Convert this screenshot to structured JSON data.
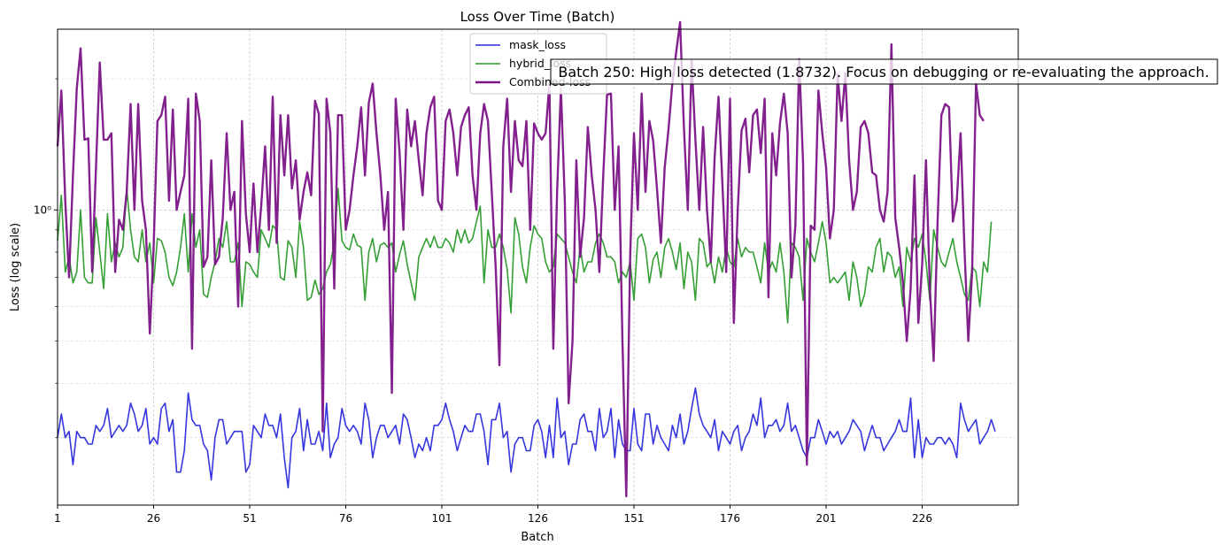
{
  "chart_data": {
    "type": "line",
    "title": "Loss Over Time (Batch)",
    "xlabel": "Batch",
    "ylabel": "Loss (log scale)",
    "yscale": "log",
    "xlim": [
      1,
      251
    ],
    "ylim": [
      0.21,
      2.6
    ],
    "x_ticks": [
      1,
      26,
      51,
      76,
      101,
      126,
      151,
      176,
      201,
      226
    ],
    "y_tick_labels": [
      {
        "value": 1,
        "label": "10⁰"
      }
    ],
    "grid": true,
    "legend": "top-center",
    "annotation": {
      "text": "Batch 250: High loss detected (1.8732). Focus on debugging or re-evaluating the approach.",
      "x": 250,
      "y": 1.8732
    },
    "series": [
      {
        "name": "mask_loss",
        "color": "#2b2bdd",
        "values": [
          0.3,
          0.34,
          0.3,
          0.31,
          0.26,
          0.31,
          0.3,
          0.3,
          0.29,
          0.29,
          0.32,
          0.31,
          0.32,
          0.35,
          0.3,
          0.31,
          0.32,
          0.31,
          0.32,
          0.36,
          0.34,
          0.31,
          0.32,
          0.35,
          0.29,
          0.3,
          0.29,
          0.35,
          0.36,
          0.31,
          0.33,
          0.25,
          0.25,
          0.28,
          0.38,
          0.33,
          0.32,
          0.32,
          0.29,
          0.28,
          0.24,
          0.3,
          0.33,
          0.33,
          0.29,
          0.3,
          0.31,
          0.31,
          0.31,
          0.25,
          0.26,
          0.32,
          0.31,
          0.3,
          0.34,
          0.32,
          0.32,
          0.3,
          0.34,
          0.27,
          0.23,
          0.3,
          0.31,
          0.35,
          0.28,
          0.33,
          0.29,
          0.29,
          0.31,
          0.28,
          0.36,
          0.27,
          0.29,
          0.3,
          0.35,
          0.32,
          0.31,
          0.32,
          0.31,
          0.29,
          0.36,
          0.33,
          0.27,
          0.3,
          0.32,
          0.32,
          0.3,
          0.31,
          0.32,
          0.29,
          0.34,
          0.33,
          0.3,
          0.27,
          0.29,
          0.28,
          0.3,
          0.28,
          0.32,
          0.32,
          0.33,
          0.36,
          0.33,
          0.31,
          0.28,
          0.3,
          0.32,
          0.31,
          0.31,
          0.34,
          0.34,
          0.31,
          0.26,
          0.33,
          0.33,
          0.36,
          0.3,
          0.31,
          0.25,
          0.29,
          0.3,
          0.3,
          0.28,
          0.28,
          0.32,
          0.33,
          0.31,
          0.27,
          0.32,
          0.27,
          0.37,
          0.3,
          0.31,
          0.26,
          0.29,
          0.29,
          0.33,
          0.34,
          0.31,
          0.31,
          0.28,
          0.35,
          0.3,
          0.31,
          0.35,
          0.27,
          0.33,
          0.29,
          0.28,
          0.28,
          0.35,
          0.29,
          0.28,
          0.34,
          0.34,
          0.29,
          0.32,
          0.3,
          0.29,
          0.28,
          0.32,
          0.3,
          0.34,
          0.29,
          0.31,
          0.35,
          0.39,
          0.34,
          0.32,
          0.31,
          0.3,
          0.33,
          0.28,
          0.31,
          0.3,
          0.29,
          0.31,
          0.32,
          0.28,
          0.3,
          0.31,
          0.34,
          0.32,
          0.37,
          0.3,
          0.32,
          0.32,
          0.33,
          0.31,
          0.32,
          0.36,
          0.31,
          0.32,
          0.3,
          0.28,
          0.27,
          0.3,
          0.3,
          0.33,
          0.31,
          0.29,
          0.31,
          0.3,
          0.31,
          0.29,
          0.3,
          0.31,
          0.33,
          0.32,
          0.31,
          0.28,
          0.3,
          0.32,
          0.3,
          0.3,
          0.28,
          0.29,
          0.3,
          0.31,
          0.33,
          0.31,
          0.31,
          0.37,
          0.27,
          0.33,
          0.27,
          0.3,
          0.29,
          0.29,
          0.3,
          0.3,
          0.29,
          0.3,
          0.29,
          0.27,
          0.36,
          0.33,
          0.31,
          0.32,
          0.33,
          0.29,
          0.3,
          0.31,
          0.33,
          0.31
        ]
      },
      {
        "name": "hybrid_loss",
        "color": "#2a9a2a",
        "values": [
          0.85,
          1.08,
          0.72,
          0.78,
          0.68,
          0.72,
          1.0,
          0.7,
          0.68,
          0.68,
          0.96,
          0.8,
          0.66,
          0.98,
          0.76,
          0.84,
          0.78,
          0.82,
          1.12,
          0.9,
          0.78,
          0.76,
          0.9,
          0.76,
          0.84,
          0.68,
          0.86,
          0.85,
          0.8,
          0.7,
          0.67,
          0.72,
          0.82,
          0.98,
          0.72,
          0.98,
          0.82,
          0.9,
          0.64,
          0.63,
          0.7,
          0.76,
          0.86,
          0.82,
          0.94,
          0.76,
          0.76,
          0.84,
          0.6,
          0.76,
          0.75,
          0.72,
          0.7,
          0.9,
          0.86,
          0.82,
          0.92,
          0.9,
          0.7,
          0.69,
          0.85,
          0.82,
          0.7,
          0.94,
          0.82,
          0.62,
          0.63,
          0.69,
          0.64,
          0.66,
          0.72,
          0.75,
          0.84,
          1.12,
          0.85,
          0.82,
          0.81,
          0.88,
          0.83,
          0.82,
          0.62,
          0.8,
          0.86,
          0.76,
          0.83,
          0.84,
          0.82,
          0.84,
          0.72,
          0.79,
          0.85,
          0.75,
          0.68,
          0.62,
          0.78,
          0.82,
          0.86,
          0.82,
          0.87,
          0.82,
          0.82,
          0.86,
          0.84,
          0.8,
          0.9,
          0.84,
          0.9,
          0.84,
          0.86,
          0.94,
          1.02,
          0.68,
          0.9,
          0.82,
          0.82,
          0.88,
          0.82,
          0.73,
          0.58,
          0.96,
          0.88,
          0.74,
          0.68,
          0.82,
          0.92,
          0.88,
          0.86,
          0.76,
          0.72,
          0.74,
          0.88,
          0.86,
          0.84,
          0.78,
          0.72,
          0.68,
          0.82,
          0.72,
          0.76,
          0.76,
          0.84,
          0.88,
          0.84,
          0.78,
          0.78,
          0.76,
          0.68,
          0.72,
          0.7,
          0.76,
          0.62,
          0.86,
          0.88,
          0.82,
          0.68,
          0.77,
          0.8,
          0.7,
          0.82,
          0.86,
          0.8,
          0.73,
          0.84,
          0.66,
          0.8,
          0.76,
          0.62,
          0.86,
          0.84,
          0.74,
          0.76,
          0.68,
          0.78,
          0.72,
          0.82,
          0.76,
          0.74,
          0.86,
          0.78,
          0.82,
          0.8,
          0.8,
          0.74,
          0.68,
          0.84,
          0.72,
          0.76,
          0.72,
          0.84,
          0.72,
          0.55,
          0.84,
          0.82,
          0.78,
          0.62,
          0.86,
          0.8,
          0.76,
          0.84,
          0.94,
          0.84,
          0.68,
          0.7,
          0.68,
          0.7,
          0.72,
          0.62,
          0.76,
          0.7,
          0.6,
          0.64,
          0.74,
          0.72,
          0.82,
          0.86,
          0.72,
          0.8,
          0.78,
          0.7,
          0.74,
          0.6,
          0.82,
          0.76,
          0.86,
          0.82,
          0.88,
          0.76,
          0.62,
          0.9,
          0.82,
          0.76,
          0.74,
          0.8,
          0.86,
          0.76,
          0.7,
          0.64,
          0.62,
          0.74,
          0.72,
          0.6,
          0.76,
          0.72,
          0.94
        ]
      },
      {
        "name": "Combined-loss",
        "color": "#7b1487",
        "values": [
          1.4,
          1.88,
          1.05,
          0.7,
          1.2,
          1.9,
          2.35,
          1.45,
          1.46,
          0.72,
          1.25,
          2.18,
          1.45,
          1.45,
          1.5,
          0.72,
          0.95,
          0.9,
          1.1,
          1.75,
          1.0,
          1.75,
          1.05,
          0.9,
          0.52,
          0.82,
          1.6,
          1.65,
          1.82,
          1.05,
          1.7,
          1.0,
          1.1,
          1.2,
          1.8,
          0.48,
          1.85,
          1.6,
          0.74,
          0.78,
          1.3,
          0.75,
          0.78,
          0.96,
          1.5,
          1.0,
          1.1,
          0.6,
          1.6,
          0.98,
          0.8,
          1.15,
          0.8,
          1.02,
          1.4,
          0.9,
          1.82,
          0.84,
          1.65,
          1.2,
          1.65,
          1.12,
          1.3,
          0.95,
          1.1,
          1.22,
          1.08,
          1.78,
          1.66,
          0.31,
          1.8,
          1.5,
          0.66,
          1.65,
          1.65,
          0.9,
          1.0,
          1.2,
          1.4,
          1.72,
          1.2,
          1.76,
          1.95,
          1.5,
          1.2,
          0.9,
          1.1,
          0.38,
          1.8,
          1.35,
          0.9,
          1.7,
          1.4,
          1.6,
          1.3,
          1.08,
          1.5,
          1.72,
          1.82,
          1.05,
          1.0,
          1.6,
          1.7,
          1.5,
          1.2,
          1.55,
          1.65,
          1.72,
          1.2,
          1.0,
          1.5,
          1.75,
          1.6,
          1.1,
          0.74,
          0.44,
          1.4,
          1.8,
          1.1,
          1.6,
          1.3,
          1.26,
          1.6,
          0.9,
          1.58,
          1.5,
          1.45,
          1.5,
          1.95,
          0.48,
          1.1,
          1.9,
          1.05,
          0.36,
          0.5,
          1.3,
          0.78,
          0.96,
          1.55,
          1.2,
          1.0,
          0.72,
          1.2,
          1.84,
          1.85,
          1.0,
          1.4,
          0.5,
          0.22,
          0.78,
          1.5,
          1.0,
          1.85,
          1.1,
          1.6,
          1.44,
          1.12,
          0.84,
          1.25,
          1.54,
          1.96,
          2.3,
          2.7,
          1.55,
          1.0,
          2.2,
          1.45,
          1.0,
          1.55,
          1.0,
          0.76,
          1.32,
          1.82,
          1.16,
          0.72,
          1.8,
          0.55,
          1.0,
          1.52,
          1.62,
          1.22,
          1.65,
          1.7,
          1.35,
          1.8,
          0.63,
          1.5,
          1.2,
          1.58,
          1.85,
          1.5,
          0.7,
          0.92,
          2.22,
          1.28,
          0.26,
          0.92,
          0.9,
          1.88,
          1.5,
          1.25,
          0.86,
          1.0,
          2.05,
          1.6,
          2.06,
          1.3,
          1.0,
          1.1,
          1.55,
          1.6,
          1.5,
          1.22,
          1.2,
          1.0,
          0.94,
          1.1,
          2.4,
          0.96,
          0.82,
          0.68,
          0.5,
          0.66,
          1.2,
          0.55,
          0.75,
          1.3,
          0.66,
          0.45,
          0.94,
          1.65,
          1.75,
          1.72,
          0.94,
          1.05,
          1.5,
          0.82,
          0.5,
          0.72,
          1.95,
          1.65,
          1.6
        ]
      }
    ]
  }
}
